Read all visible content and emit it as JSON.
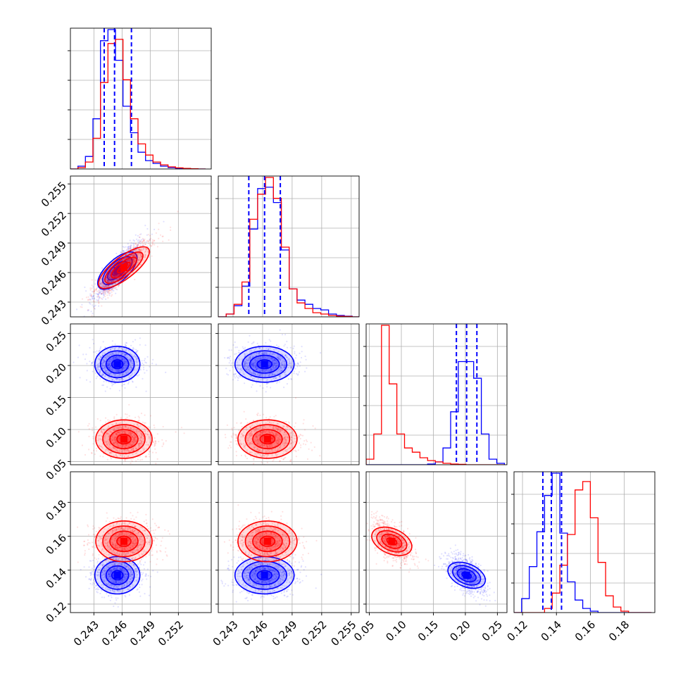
{
  "chart_data": {
    "type": "corner",
    "title": "",
    "grid": true,
    "parameters": 4,
    "series": [
      {
        "color": "#0000ff",
        "p0": {
          "mean": 0.2455,
          "sd": 0.0012,
          "hist_peak_bin": 0.2455,
          "quantiles": [
            0.2441,
            0.2452,
            0.247
          ]
        },
        "p1": {
          "mean": 0.2462,
          "sd": 0.0015,
          "quantiles": [
            0.2446,
            0.2462,
            0.2478
          ]
        },
        "p2": {
          "mean": 0.202,
          "sd": 0.014,
          "quantiles": [
            0.186,
            0.202,
            0.218
          ]
        },
        "p3": {
          "mean": 0.137,
          "sd": 0.0055,
          "quantiles": [
            0.132,
            0.137,
            0.143
          ]
        }
      },
      {
        "color": "#ff0000",
        "p0": {
          "mean": 0.2462,
          "sd": 0.0015
        },
        "p1": {
          "mean": 0.2465,
          "sd": 0.0015
        },
        "p2": {
          "mean": 0.085,
          "sd": 0.015
        },
        "p3": {
          "mean": 0.157,
          "sd": 0.006
        }
      }
    ],
    "correlations": {
      "p0_p1": 0.9,
      "p2_p3": -0.55
    },
    "axes": {
      "p0": {
        "range": [
          0.2405,
          0.2555
        ],
        "ticks": [
          "0.243",
          "0.246",
          "0.249",
          "0.252"
        ]
      },
      "p1": {
        "range": [
          0.2415,
          0.2558
        ],
        "ticks": [
          "0.243",
          "0.246",
          "0.249",
          "0.252",
          "0.255"
        ]
      },
      "p2": {
        "range": [
          0.045,
          0.265
        ],
        "ticks": [
          "0.05",
          "0.10",
          "0.15",
          "0.20",
          "0.25"
        ]
      },
      "p3": {
        "range": [
          0.115,
          0.198
        ],
        "ticks": [
          "0.12",
          "0.14",
          "0.16",
          "0.18"
        ]
      }
    },
    "histograms": {
      "p0": {
        "bins": [
          0.2405,
          0.2413,
          0.2421,
          0.2429,
          0.2437,
          0.2445,
          0.2453,
          0.2461,
          0.2469,
          0.2477,
          0.2485,
          0.2493,
          0.2501,
          0.2509,
          0.2517,
          0.2525,
          0.2533,
          0.2541,
          0.2549
        ],
        "blue": [
          0,
          2,
          9,
          36,
          92,
          100,
          78,
          45,
          26,
          12,
          6,
          4,
          2,
          1,
          0.5,
          0.3,
          0.2,
          0
        ],
        "red": [
          0,
          1,
          5,
          22,
          62,
          90,
          93,
          64,
          36,
          18,
          10,
          5,
          3,
          1.5,
          0.8,
          0.4,
          0.2,
          0
        ]
      },
      "p1": {
        "bins": [
          0.2415,
          0.2423,
          0.2431,
          0.2439,
          0.2447,
          0.2455,
          0.2463,
          0.2471,
          0.2479,
          0.2487,
          0.2495,
          0.2503,
          0.2511,
          0.2519,
          0.2527,
          0.2535,
          0.2543,
          0.2551,
          0.2558
        ],
        "blue": [
          0,
          2,
          8,
          22,
          63,
          92,
          93,
          82,
          48,
          20,
          12,
          9,
          6,
          5,
          2,
          1,
          0.5,
          0
        ],
        "red": [
          0,
          2,
          9,
          25,
          70,
          88,
          100,
          85,
          50,
          20,
          10,
          6,
          3,
          2,
          1,
          0.5,
          0.3,
          0
        ]
      },
      "p2": {
        "bins": [
          0.045,
          0.057,
          0.069,
          0.081,
          0.093,
          0.105,
          0.117,
          0.129,
          0.141,
          0.153,
          0.165,
          0.177,
          0.189,
          0.201,
          0.213,
          0.225,
          0.237,
          0.249,
          0.261
        ],
        "blue": [
          0,
          0,
          0,
          0,
          0,
          0,
          0,
          0,
          0.5,
          2,
          12,
          38,
          74,
          74,
          62,
          22,
          4,
          1
        ],
        "red": [
          4,
          22,
          100,
          58,
          22,
          12,
          9,
          5,
          3,
          2,
          1,
          0.5,
          0.3,
          0,
          0,
          0,
          0,
          0
        ]
      },
      "p3": {
        "bins": [
          0.115,
          0.1195,
          0.124,
          0.1285,
          0.133,
          0.1375,
          0.142,
          0.1465,
          0.151,
          0.1555,
          0.16,
          0.1645,
          0.169,
          0.1735,
          0.178,
          0.1825,
          0.187,
          0.1915,
          0.196
        ],
        "blue": [
          0,
          10,
          33,
          58,
          84,
          100,
          57,
          22,
          9,
          3,
          1,
          0,
          0,
          0,
          0,
          0,
          0,
          0
        ],
        "red": [
          0,
          0,
          0,
          0,
          3,
          14,
          34,
          56,
          88,
          94,
          68,
          36,
          12,
          4,
          1,
          0,
          0,
          0
        ]
      }
    }
  }
}
